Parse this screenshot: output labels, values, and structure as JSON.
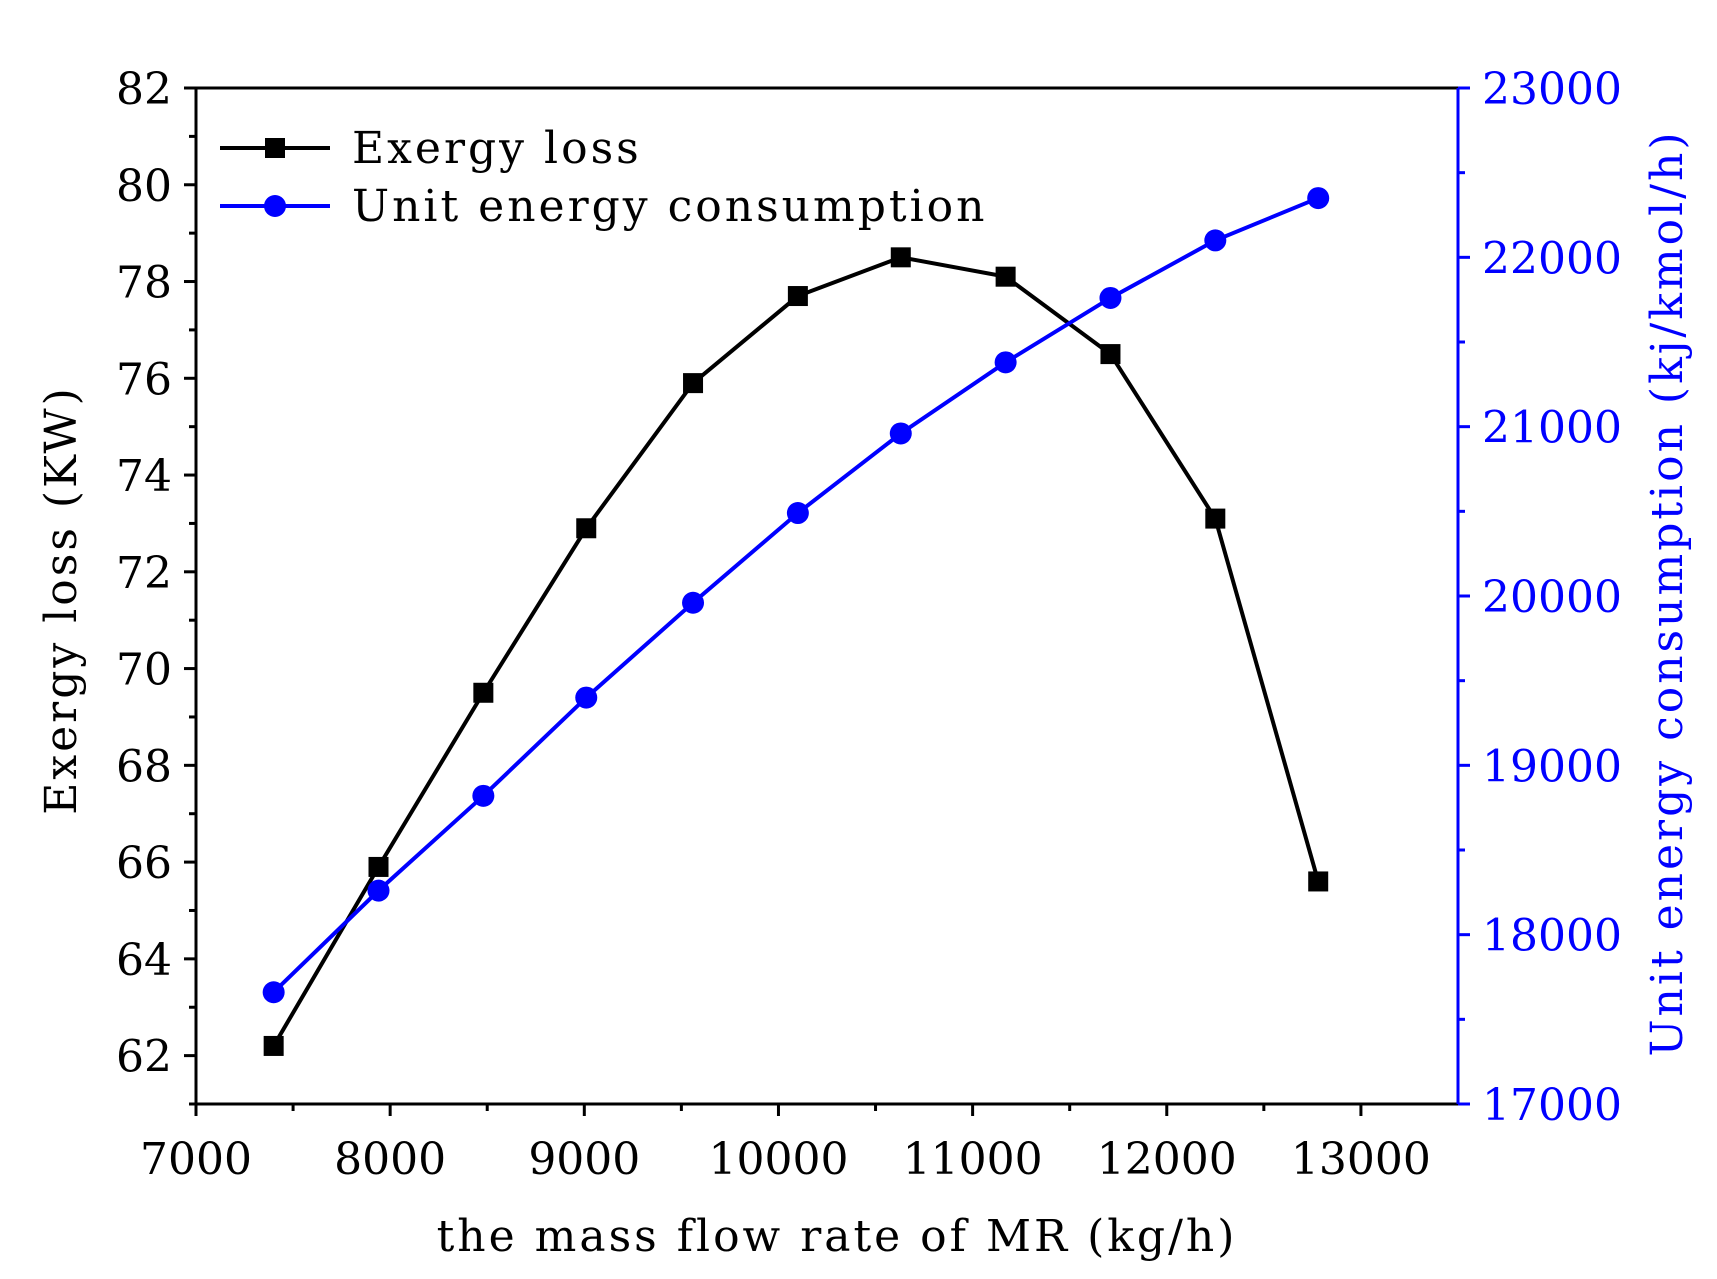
{
  "chart_data": {
    "type": "line",
    "title": "",
    "x": [
      7400,
      7940,
      8480,
      9010,
      9560,
      10100,
      10630,
      11170,
      11710,
      12250,
      12780
    ],
    "xlabel": "the mass flow rate of MR (kg/h)",
    "xlim": [
      7000,
      13500
    ],
    "xticks": [
      7000,
      8000,
      9000,
      10000,
      11000,
      12000,
      13000
    ],
    "xtick_labels": [
      "7000",
      "8000",
      "9000",
      "10000",
      "11000",
      "12000",
      "13000"
    ],
    "ylabel_left": "Exergy loss (KW)",
    "ylim_left": [
      61,
      82
    ],
    "yticks_left": [
      62,
      64,
      66,
      68,
      70,
      72,
      74,
      76,
      78,
      80,
      82
    ],
    "ytick_labels_left": [
      "62",
      "64",
      "66",
      "68",
      "70",
      "72",
      "74",
      "76",
      "78",
      "80",
      "82"
    ],
    "ylabel_right": "Unit energy consumption (kj/kmol/h)",
    "ylim_right": [
      17000,
      23000
    ],
    "yticks_right": [
      17000,
      18000,
      19000,
      20000,
      21000,
      22000,
      23000
    ],
    "ytick_labels_right": [
      "17000",
      "18000",
      "19000",
      "20000",
      "21000",
      "22000",
      "23000"
    ],
    "series": [
      {
        "name": "Exergy loss",
        "axis": "left",
        "color": "#000000",
        "marker": "square",
        "values": [
          62.2,
          65.9,
          69.5,
          72.9,
          75.9,
          77.7,
          78.5,
          78.1,
          76.5,
          73.1,
          65.6
        ]
      },
      {
        "name": "Unit energy consumption",
        "axis": "right",
        "color": "#0000ff",
        "marker": "circle",
        "values": [
          17660,
          18260,
          18820,
          19400,
          19960,
          20490,
          20960,
          21380,
          21760,
          22100,
          22350
        ]
      }
    ],
    "legend_position": "top-left",
    "grid": false
  }
}
